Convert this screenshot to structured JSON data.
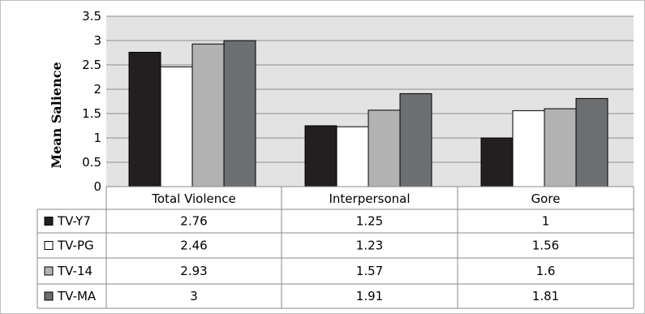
{
  "chart_data": {
    "type": "bar",
    "ylabel": "Mean Salience",
    "ylim": [
      0,
      3.5
    ],
    "yticks": [
      "0",
      "0.5",
      "1",
      "1.5",
      "2",
      "2.5",
      "3",
      "3.5"
    ],
    "grid": true,
    "legend": "data table below chart",
    "categories": [
      "Total Violence",
      "Interpersonal",
      "Gore"
    ],
    "series": [
      {
        "name": "TV-Y7",
        "values": [
          2.76,
          1.25,
          1
        ],
        "labels": [
          "2.76",
          "1.25",
          "1"
        ],
        "color": "#231f20"
      },
      {
        "name": "TV-PG",
        "values": [
          2.46,
          1.23,
          1.56
        ],
        "labels": [
          "2.46",
          "1.23",
          "1.56"
        ],
        "color": "#ffffff"
      },
      {
        "name": "TV-14",
        "values": [
          2.93,
          1.57,
          1.6
        ],
        "labels": [
          "2.93",
          "1.57",
          "1.6"
        ],
        "color": "#b2b2b2"
      },
      {
        "name": "TV-MA",
        "values": [
          3,
          1.91,
          1.81
        ],
        "labels": [
          "3",
          "1.91",
          "1.81"
        ],
        "color": "#6d6e70"
      }
    ]
  }
}
